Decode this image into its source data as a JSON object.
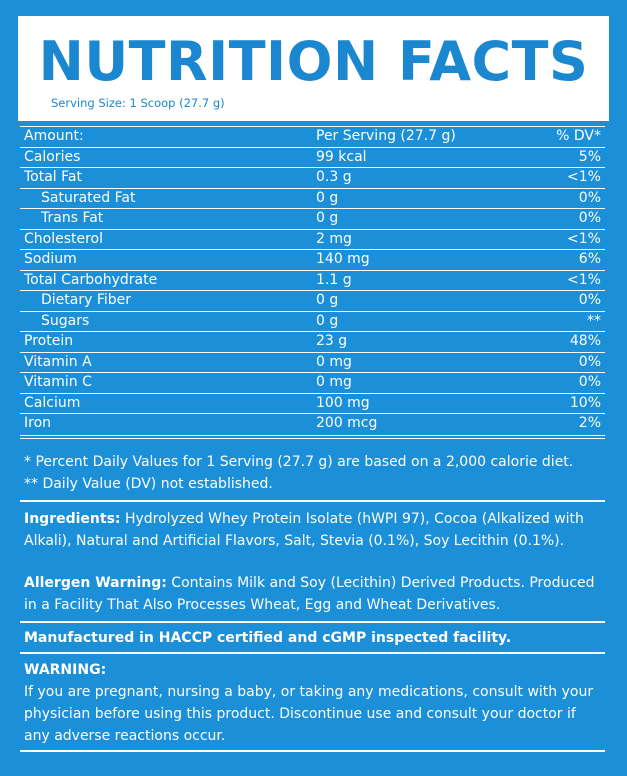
{
  "header": {
    "title": "NUTRITION FACTS",
    "serving_size": "Serving Size: 1 Scoop (27.7 g)"
  },
  "table": {
    "columns": [
      "Amount:",
      "Per Serving (27.7 g)",
      "% DV*"
    ],
    "rows": [
      [
        "Calories",
        "99 kcal",
        "5%"
      ],
      [
        "Total Fat",
        "0.3 g",
        "<1%"
      ],
      [
        "Saturated Fat",
        "0 g",
        "0%"
      ],
      [
        "Trans Fat",
        "0 g",
        "0%"
      ],
      [
        "Cholesterol",
        "2 mg",
        "<1%"
      ],
      [
        "Sodium",
        "140 mg",
        "6%"
      ],
      [
        "Total Carbohydrate",
        "1.1 g",
        "<1%"
      ],
      [
        "Dietary Fiber",
        "0 g",
        "0%"
      ],
      [
        "Sugars",
        "0 g",
        "**"
      ],
      [
        "Protein",
        "23 g",
        "48%"
      ],
      [
        "Vitamin A",
        "0 mg",
        "0%"
      ],
      [
        "Vitamin C",
        "0 mg",
        "0%"
      ],
      [
        "Calcium",
        "100 mg",
        "10%"
      ],
      [
        "Iron",
        "200 mcg",
        "2%"
      ]
    ]
  },
  "footnotes": [
    "* Percent Daily Values for 1 Serving (27.7 g) are based on a 2,000 calorie diet.",
    "** Daily Value (DV) not established."
  ],
  "ingredients": {
    "label": "Ingredients:",
    "text": "Hydrolyzed Whey Protein Isolate (hWPI 97), Cocoa (Alkalized with Alkali), Natural and Artificial Flavors, Salt, Stevia (0.1%), Soy Lecithin (0.1%)."
  },
  "allergen": {
    "label": "Allergen Warning:",
    "text": "Contains Milk and Soy (Lecithin) Derived Products. Produced in a Facility That Also Processes Wheat, Egg and Wheat Derivatives."
  },
  "manufactured": "Manufactured in HACCP certified and cGMP inspected facility.",
  "warning": {
    "label": "WARNING:",
    "text": "If you are pregnant, nursing a baby, or taking any medications, consult with your physician before using this product. Discontinue use and consult your doctor if any adverse reactions occur."
  }
}
